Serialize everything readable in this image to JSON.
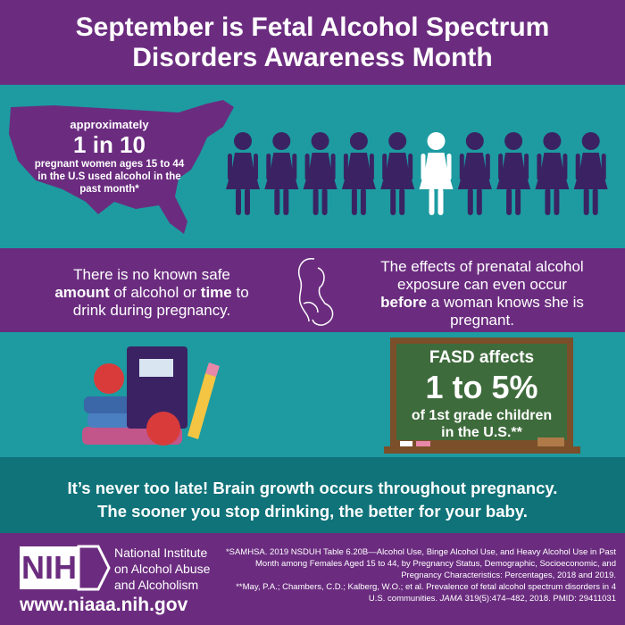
{
  "header": {
    "title": [
      "September is Fetal Alcohol Spectrum",
      "Disorders Awareness Month"
    ]
  },
  "stat": {
    "lead": "approximately",
    "figure": "1 in 10",
    "text": [
      "pregnant women ages 15 to 44",
      "in the U.S used alcohol in the",
      "past month*"
    ]
  },
  "facts": {
    "left": [
      "There is no known safe ",
      "amount",
      " of alcohol or ",
      "time",
      " to drink during pregnancy."
    ],
    "right": [
      "The effects of prenatal alcohol exposure can even occur ",
      "before",
      " a woman knows she is pregnant."
    ]
  },
  "chalkboard": {
    "lead": "FASD affects",
    "figure": "1 to 5%",
    "text": [
      "of 1st grade children",
      "in the U.S.**"
    ]
  },
  "message": {
    "lines": [
      "It’s never too late! Brain growth occurs throughout pregnancy.",
      "The sooner you stop drinking, the better for your baby."
    ]
  },
  "footer": {
    "logo": "NIH",
    "org": [
      "National Institute",
      "on Alcohol Abuse",
      "and Alcoholism"
    ],
    "url": "www.niaaa.nih.gov",
    "note1": "*SAMHSA. 2019 NSDUH Table 6.20B—Alcohol Use, Binge Alcohol Use, and Heavy Alcohol Use in Past Month among Females Aged 15 to 44, by Pregnancy Status, Demographic, Socioeconomic, and Pregnancy Characteristics: Percentages, 2018 and 2019.",
    "note2": [
      "**May, P.A.; Chambers, C.D.; Kalberg, W.O.; et al. Prevalence of fetal alcohol spectrum disorders in 4 U.S. communities. ",
      "JAMA",
      " 319(5):474–482, 2018. PMID: 29411031"
    ]
  }
}
